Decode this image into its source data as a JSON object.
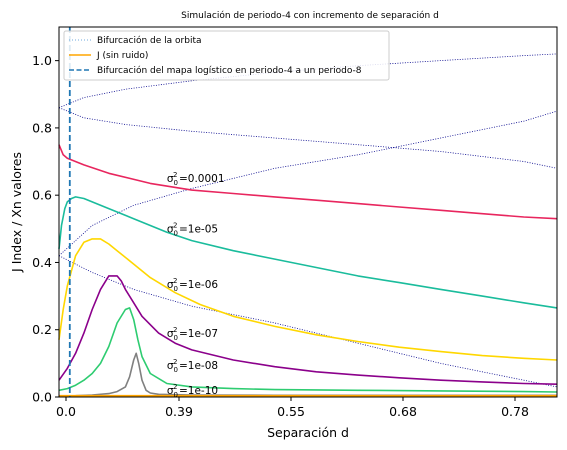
{
  "chart_data": {
    "type": "line",
    "title": "Simulación de periodo-4 con incremento de separación d",
    "xlabel": "Separación d",
    "ylabel": "J Index / Xn valores",
    "xlim": [
      0.24,
      0.84
    ],
    "ylim": [
      0.0,
      1.1
    ],
    "x_tick_labels": [
      "0.0",
      "0.39",
      "0.55",
      "0.68",
      "0.78"
    ],
    "y_ticks": [
      0.0,
      0.2,
      0.4,
      0.6,
      0.8,
      1.0
    ],
    "y_tick_labels": [
      "0.0",
      "0.2",
      "0.4",
      "0.6",
      "0.8",
      "1.0"
    ],
    "grid": false,
    "legend_position": "top-left",
    "legend": [
      {
        "label": "Bifurcación de la orbita",
        "color": "#6fa8dc",
        "style": "dotted"
      },
      {
        "label": "J (sin ruido)",
        "color": "#ffa500",
        "style": "solid"
      },
      {
        "label": "Bifurcación del mapa logístico en periodo-4 a un periodo-8",
        "color": "#1f77b4",
        "style": "dashed"
      }
    ],
    "vline": {
      "x": 0.253,
      "color": "#1f77b4"
    },
    "orbit_branches": [
      {
        "name": "top",
        "x": [
          0.24,
          0.27,
          0.32,
          0.4,
          0.5,
          0.6,
          0.7,
          0.8,
          0.84
        ],
        "y": [
          0.86,
          0.89,
          0.915,
          0.94,
          0.965,
          0.985,
          1.0,
          1.015,
          1.02
        ]
      },
      {
        "name": "upper-mid",
        "x": [
          0.24,
          0.27,
          0.32,
          0.4,
          0.5,
          0.6,
          0.7,
          0.8,
          0.84
        ],
        "y": [
          0.86,
          0.83,
          0.81,
          0.79,
          0.77,
          0.75,
          0.73,
          0.7,
          0.68
        ]
      },
      {
        "name": "lower-mid",
        "x": [
          0.24,
          0.28,
          0.33,
          0.4,
          0.5,
          0.6,
          0.7,
          0.8,
          0.84
        ],
        "y": [
          0.42,
          0.51,
          0.57,
          0.62,
          0.68,
          0.72,
          0.77,
          0.82,
          0.85
        ]
      },
      {
        "name": "bottom",
        "x": [
          0.24,
          0.28,
          0.33,
          0.4,
          0.5,
          0.6,
          0.7,
          0.8,
          0.84
        ],
        "y": [
          0.42,
          0.37,
          0.32,
          0.27,
          0.22,
          0.16,
          0.1,
          0.05,
          0.03
        ]
      }
    ],
    "series": [
      {
        "noise": "0.0001",
        "color": "#e8265e",
        "x": [
          0.24,
          0.245,
          0.25,
          0.27,
          0.3,
          0.35,
          0.4,
          0.45,
          0.5,
          0.55,
          0.6,
          0.65,
          0.7,
          0.75,
          0.8,
          0.84
        ],
        "y": [
          0.75,
          0.72,
          0.71,
          0.69,
          0.665,
          0.635,
          0.615,
          0.605,
          0.595,
          0.585,
          0.575,
          0.565,
          0.555,
          0.545,
          0.535,
          0.53
        ]
      },
      {
        "noise": "1e-05",
        "color": "#1abc9c",
        "x": [
          0.24,
          0.243,
          0.247,
          0.25,
          0.255,
          0.26,
          0.27,
          0.28,
          0.3,
          0.33,
          0.37,
          0.4,
          0.45,
          0.5,
          0.55,
          0.6,
          0.65,
          0.7,
          0.75,
          0.8,
          0.84
        ],
        "y": [
          0.44,
          0.51,
          0.56,
          0.58,
          0.59,
          0.595,
          0.59,
          0.58,
          0.56,
          0.53,
          0.49,
          0.465,
          0.435,
          0.41,
          0.385,
          0.36,
          0.34,
          0.32,
          0.3,
          0.28,
          0.265
        ]
      },
      {
        "noise": "1e-06",
        "color": "#ffd700",
        "x": [
          0.24,
          0.245,
          0.25,
          0.26,
          0.27,
          0.28,
          0.29,
          0.3,
          0.31,
          0.33,
          0.35,
          0.38,
          0.41,
          0.45,
          0.5,
          0.55,
          0.6,
          0.65,
          0.7,
          0.75,
          0.8,
          0.84
        ],
        "y": [
          0.17,
          0.26,
          0.33,
          0.42,
          0.46,
          0.47,
          0.47,
          0.455,
          0.435,
          0.395,
          0.355,
          0.31,
          0.275,
          0.24,
          0.21,
          0.185,
          0.165,
          0.148,
          0.135,
          0.123,
          0.115,
          0.11
        ]
      },
      {
        "noise": "1e-07",
        "color": "#8b008b",
        "x": [
          0.24,
          0.25,
          0.26,
          0.27,
          0.28,
          0.29,
          0.3,
          0.31,
          0.315,
          0.32,
          0.33,
          0.34,
          0.36,
          0.38,
          0.4,
          0.45,
          0.5,
          0.55,
          0.6,
          0.65,
          0.7,
          0.75,
          0.8,
          0.84
        ],
        "y": [
          0.05,
          0.085,
          0.13,
          0.19,
          0.26,
          0.32,
          0.36,
          0.36,
          0.345,
          0.32,
          0.28,
          0.24,
          0.19,
          0.16,
          0.14,
          0.11,
          0.09,
          0.075,
          0.065,
          0.057,
          0.05,
          0.045,
          0.04,
          0.038
        ]
      },
      {
        "noise": "1e-08",
        "color": "#2ecc71",
        "x": [
          0.24,
          0.25,
          0.26,
          0.27,
          0.28,
          0.29,
          0.3,
          0.31,
          0.32,
          0.325,
          0.33,
          0.335,
          0.34,
          0.35,
          0.37,
          0.4,
          0.45,
          0.5,
          0.6,
          0.7,
          0.8,
          0.84
        ],
        "y": [
          0.02,
          0.025,
          0.035,
          0.05,
          0.07,
          0.1,
          0.15,
          0.22,
          0.26,
          0.265,
          0.23,
          0.17,
          0.12,
          0.07,
          0.04,
          0.03,
          0.025,
          0.022,
          0.02,
          0.018,
          0.016,
          0.015
        ]
      },
      {
        "noise": "1e-10",
        "color": "#808080",
        "x": [
          0.24,
          0.26,
          0.28,
          0.3,
          0.31,
          0.32,
          0.325,
          0.33,
          0.333,
          0.336,
          0.34,
          0.345,
          0.35,
          0.36,
          0.4,
          0.5,
          0.6,
          0.7,
          0.8,
          0.84
        ],
        "y": [
          0.003,
          0.004,
          0.006,
          0.01,
          0.016,
          0.03,
          0.06,
          0.11,
          0.13,
          0.1,
          0.05,
          0.02,
          0.012,
          0.008,
          0.006,
          0.005,
          0.005,
          0.005,
          0.005,
          0.005
        ]
      },
      {
        "noise": "none",
        "color": "#ffa500",
        "x": [
          0.24,
          0.84
        ],
        "y": [
          0.004,
          0.004
        ]
      }
    ],
    "annotations": [
      {
        "sub": "0",
        "sup": "2",
        "text": "=0.0001",
        "x": 0.37,
        "y": 0.63
      },
      {
        "sub": "0",
        "sup": "2",
        "text": "=1e-05",
        "x": 0.37,
        "y": 0.48
      },
      {
        "sub": "0",
        "sup": "2",
        "text": "=1e-06",
        "x": 0.37,
        "y": 0.315
      },
      {
        "sub": "0",
        "sup": "2",
        "text": "=1e-07",
        "x": 0.37,
        "y": 0.17
      },
      {
        "sub": "0",
        "sup": "2",
        "text": "=1e-08",
        "x": 0.37,
        "y": 0.075
      },
      {
        "sub": "0",
        "sup": "2",
        "text": "=1e-10",
        "x": 0.37,
        "y": 0.0
      }
    ]
  }
}
